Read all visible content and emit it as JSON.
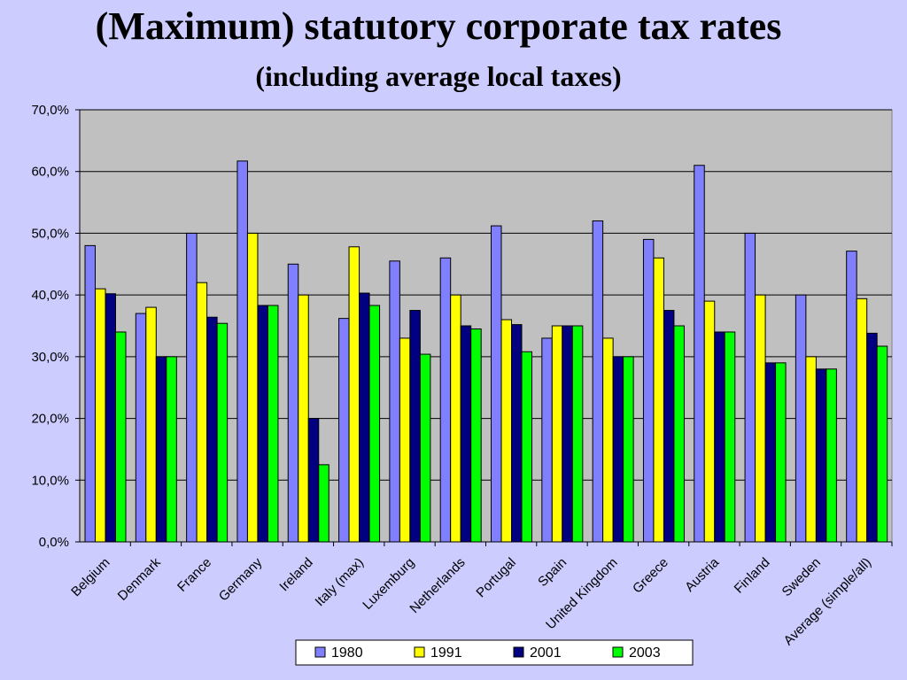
{
  "slide": {
    "title": "(Maximum) statutory corporate tax rates",
    "subtitle": "(including average local taxes)"
  },
  "colors": {
    "background": "#ccccff",
    "plot_area": "#c0c0c0",
    "series_1980": "#8080ff",
    "series_1991": "#ffff00",
    "series_2001": "#000080",
    "series_2003": "#00ff00"
  },
  "chart_data": {
    "type": "bar",
    "title": "",
    "xlabel": "",
    "ylabel": "",
    "ylim": [
      0,
      70
    ],
    "yticks": [
      "0,0%",
      "10,0%",
      "20,0%",
      "30,0%",
      "40,0%",
      "50,0%",
      "60,0%",
      "70,0%"
    ],
    "grid": true,
    "legend_position": "bottom",
    "categories": [
      "Belgium",
      "Denmark",
      "France",
      "Germany",
      "Ireland",
      "Italy (max)",
      "Luxemburg",
      "Netherlands",
      "Portugal",
      "Spain",
      "United Kingdom",
      "Greece",
      "Austria",
      "Finland",
      "Sweden",
      "Average (simple/all)"
    ],
    "series": [
      {
        "name": "1980",
        "color": "#8080ff",
        "values": [
          48,
          37,
          50,
          61.7,
          45,
          36.2,
          45.5,
          46,
          51.2,
          33,
          52,
          49,
          61,
          50,
          40,
          47.1
        ]
      },
      {
        "name": "1991",
        "color": "#ffff00",
        "values": [
          41,
          38,
          42,
          50,
          40,
          47.8,
          33,
          40,
          36,
          35,
          33,
          46,
          39,
          40,
          30,
          39.4
        ]
      },
      {
        "name": "2001",
        "color": "#000080",
        "values": [
          40.2,
          30,
          36.4,
          38.3,
          20,
          40.3,
          37.5,
          35,
          35.2,
          35,
          30,
          37.5,
          34,
          29,
          28,
          33.8
        ]
      },
      {
        "name": "2003",
        "color": "#00ff00",
        "values": [
          34,
          30,
          35.4,
          38.3,
          12.5,
          38.3,
          30.4,
          34.5,
          30.8,
          35,
          30,
          35,
          34,
          29,
          28,
          31.7
        ]
      }
    ]
  }
}
